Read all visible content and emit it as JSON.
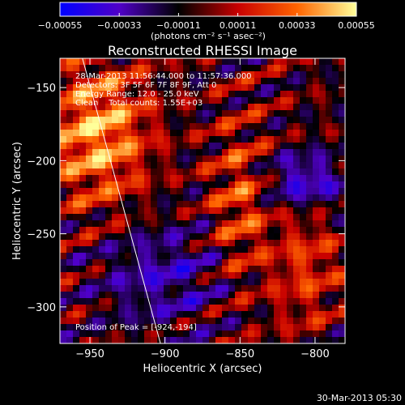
{
  "chart_data": {
    "type": "heatmap",
    "title": "Reconstructed RHESSI Image",
    "xlabel": "Heliocentric X (arcsec)",
    "ylabel": "Heliocentric Y (arcsec)",
    "xlim": [
      -970,
      -780
    ],
    "ylim": [
      -325,
      -130
    ],
    "x_ticks": [
      -950,
      -900,
      -850,
      -800
    ],
    "x_tick_labels": [
      "−950",
      "−900",
      "−850",
      "−800"
    ],
    "y_ticks": [
      -150,
      -200,
      -250,
      -300
    ],
    "y_tick_labels": [
      "−150",
      "−200",
      "−250",
      "−300"
    ],
    "colorbar": {
      "min": -0.00055,
      "max": 0.00055,
      "ticks": [
        -0.00055,
        -0.00033,
        -0.00011,
        0.00011,
        0.00033,
        0.00055
      ],
      "tick_labels": [
        "−0.00055",
        "−0.00033",
        "−0.00011",
        "0.00011",
        "0.00033",
        "0.00055"
      ],
      "unit_label": "(photons cm⁻² s⁻¹ asec⁻²)",
      "colors": [
        "#0000ff",
        "#5000c8",
        "#000000",
        "#c80000",
        "#ff6400",
        "#ffff9a"
      ]
    },
    "info_lines": [
      "28-Mar-2013 11:56:44.000 to 11:57:36.000",
      "Detectors: 3F 5F 6F 7F 8F 9F, Att 0",
      "Energy Range: 12.0 - 25.0 keV",
      "Clean    Total counts: 1.55E+03"
    ],
    "peak_annotation": "Position of Peak = [-924,-194]",
    "peak_position": [
      -924,
      -194
    ],
    "limb_line": [
      [
        -955,
        -130
      ],
      [
        -903,
        -325
      ]
    ]
  },
  "footer": {
    "timestamp": "30-Mar-2013 05:30"
  }
}
